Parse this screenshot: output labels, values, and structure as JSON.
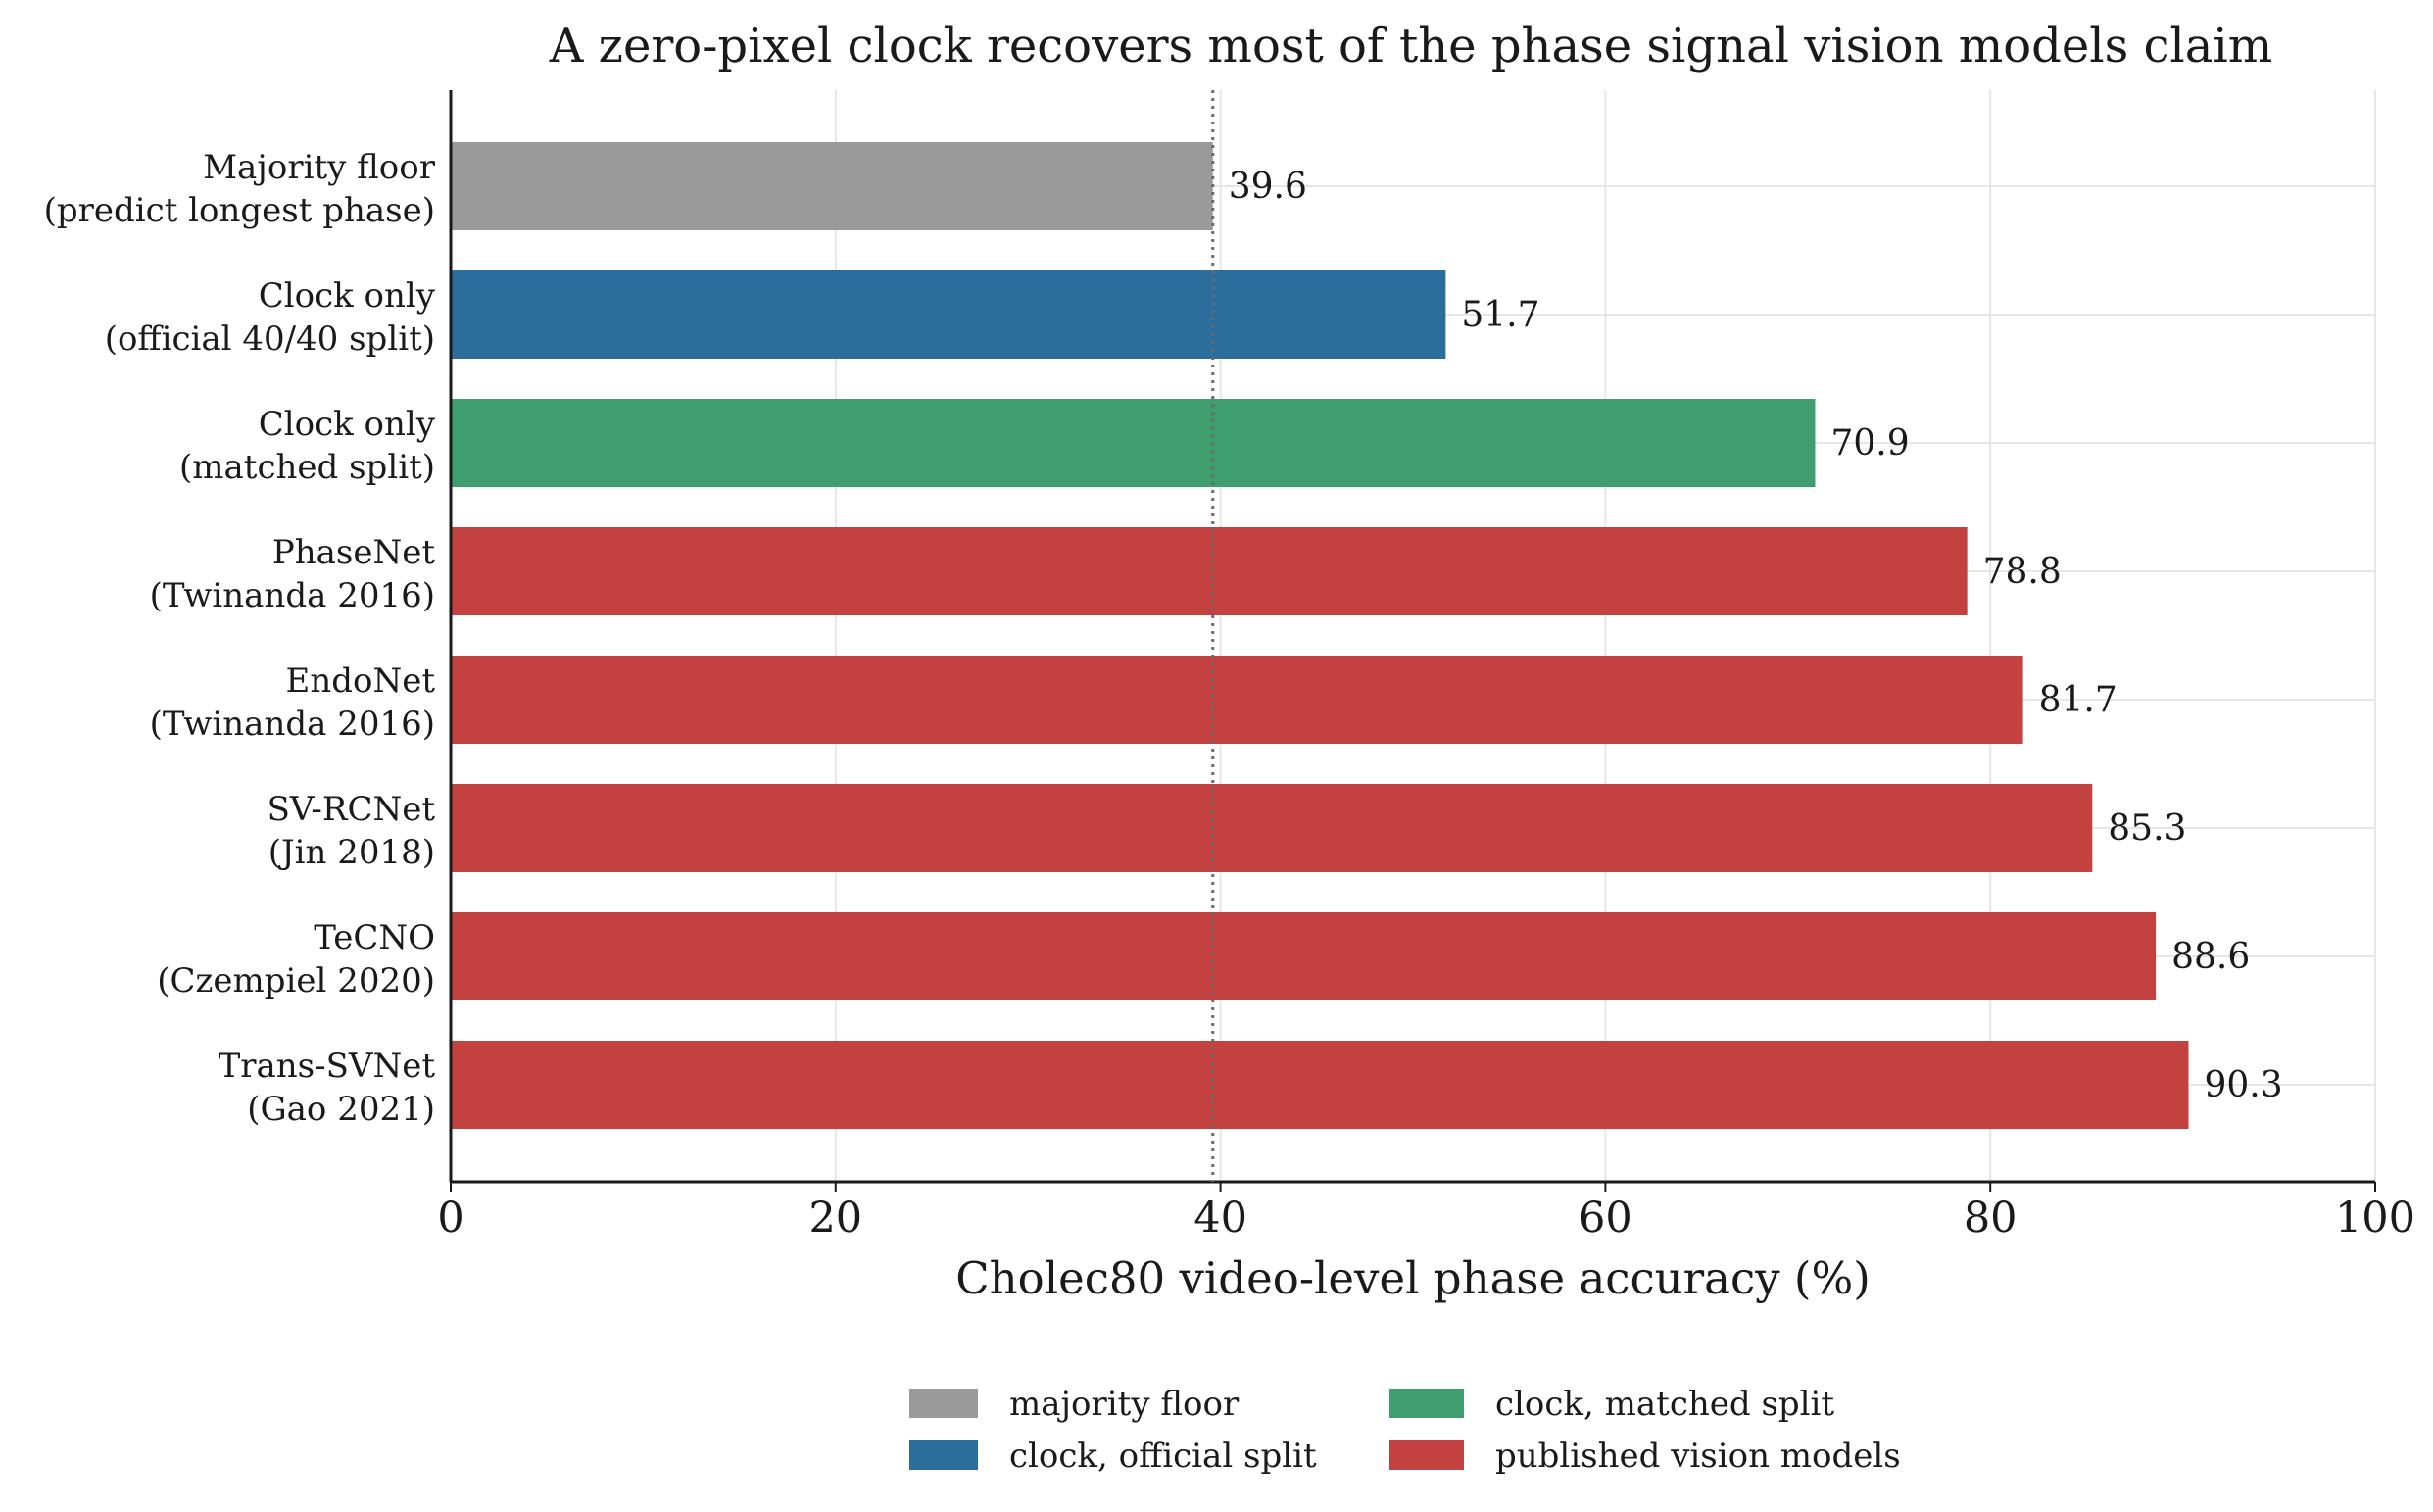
{
  "chart_data": {
    "type": "bar",
    "orientation": "horizontal",
    "title": "A zero-pixel clock recovers most of the phase signal vision models claim",
    "xlabel": "Cholec80 video-level phase accuracy (%)",
    "ylabel": "",
    "xlim": [
      0,
      100
    ],
    "xticks": [
      0,
      20,
      40,
      60,
      80,
      100
    ],
    "grid": true,
    "reference_line": {
      "value": 39.6,
      "style": "dotted"
    },
    "bars": [
      {
        "line1": "Majority floor",
        "line2": "(predict longest phase)",
        "value": 39.6,
        "label": "39.6",
        "group": "majority"
      },
      {
        "line1": "Clock only",
        "line2": "(official 40/40 split)",
        "value": 51.7,
        "label": "51.7",
        "group": "official"
      },
      {
        "line1": "Clock only",
        "line2": "(matched split)",
        "value": 70.9,
        "label": "70.9",
        "group": "matched"
      },
      {
        "line1": "PhaseNet",
        "line2": "(Twinanda 2016)",
        "value": 78.8,
        "label": "78.8",
        "group": "vision"
      },
      {
        "line1": "EndoNet",
        "line2": "(Twinanda 2016)",
        "value": 81.7,
        "label": "81.7",
        "group": "vision"
      },
      {
        "line1": "SV-RCNet",
        "line2": "(Jin 2018)",
        "value": 85.3,
        "label": "85.3",
        "group": "vision"
      },
      {
        "line1": "TeCNO",
        "line2": "(Czempiel 2020)",
        "value": 88.6,
        "label": "88.6",
        "group": "vision"
      },
      {
        "line1": "Trans-SVNet",
        "line2": "(Gao 2021)",
        "value": 90.3,
        "label": "90.3",
        "group": "vision"
      }
    ],
    "legend": {
      "placement": "bottom-center",
      "items": [
        {
          "key": "majority",
          "name": "majority floor",
          "color": "#9a9a9a"
        },
        {
          "key": "official",
          "name": "clock, official split",
          "color": "#2c6e9b"
        },
        {
          "key": "matched",
          "name": "clock, matched split",
          "color": "#3f9e6e"
        },
        {
          "key": "vision",
          "name": "published vision models",
          "color": "#c34240"
        }
      ]
    }
  }
}
